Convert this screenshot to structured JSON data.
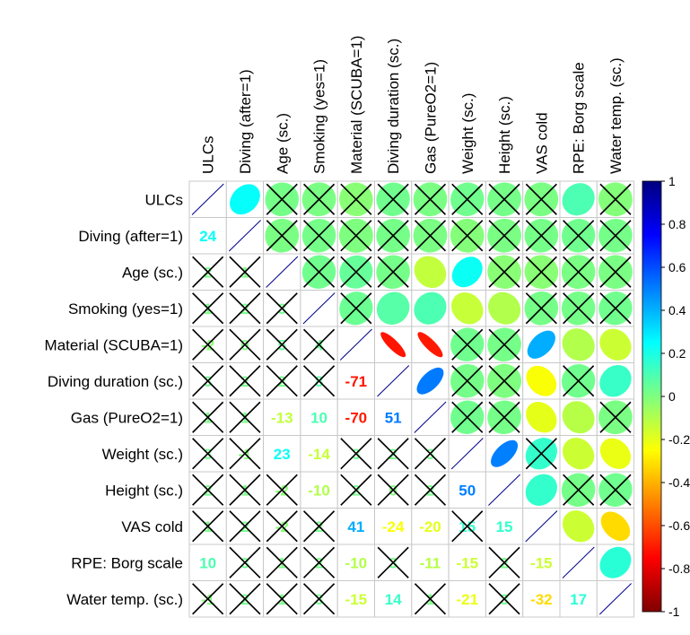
{
  "chart_data": {
    "type": "heatmap",
    "title": "",
    "variables": [
      "ULCs",
      "Diving (after=1)",
      "Age (sc.)",
      "Smoking (yes=1)",
      "Material (SCUBA=1)",
      "Diving duration (sc.)",
      "Gas (PureO2=1)",
      "Weight (sc.)",
      "Height (sc.)",
      "VAS cold",
      "RPE: Borg scale",
      "Water temp. (sc.)"
    ],
    "lower_triangle_labels": [
      [
        null,
        null,
        null,
        null,
        null,
        null,
        null,
        null,
        null,
        null,
        null,
        null
      ],
      [
        24,
        null,
        null,
        null,
        null,
        null,
        null,
        null,
        null,
        null,
        null,
        null
      ],
      [
        null,
        null,
        null,
        null,
        null,
        null,
        null,
        null,
        null,
        null,
        null,
        null
      ],
      [
        null,
        null,
        null,
        null,
        null,
        null,
        null,
        null,
        null,
        null,
        null,
        null
      ],
      [
        null,
        null,
        null,
        null,
        null,
        null,
        null,
        null,
        null,
        null,
        null,
        null
      ],
      [
        null,
        null,
        null,
        null,
        -71,
        null,
        null,
        null,
        null,
        null,
        null,
        null
      ],
      [
        null,
        null,
        -13,
        10,
        -70,
        51,
        null,
        null,
        null,
        null,
        null,
        null
      ],
      [
        null,
        null,
        23,
        -14,
        null,
        null,
        null,
        null,
        null,
        null,
        null,
        null
      ],
      [
        null,
        null,
        null,
        -10,
        null,
        null,
        null,
        50,
        null,
        null,
        null,
        null
      ],
      [
        null,
        null,
        null,
        null,
        41,
        -24,
        -20,
        null,
        15,
        null,
        null,
        null
      ],
      [
        10,
        null,
        null,
        null,
        -10,
        null,
        -11,
        -15,
        null,
        -15,
        null,
        null
      ],
      [
        null,
        null,
        null,
        null,
        -15,
        14,
        null,
        -21,
        null,
        -32,
        17,
        null
      ]
    ],
    "correlations_x100": [
      [
        100,
        24,
        2,
        1,
        -2,
        3,
        1,
        3,
        2,
        1,
        10,
        -1
      ],
      [
        24,
        100,
        1,
        2,
        0,
        2,
        1,
        -1,
        1,
        2,
        3,
        2
      ],
      [
        2,
        1,
        100,
        3,
        5,
        2,
        -13,
        23,
        -2,
        -2,
        1,
        1
      ],
      [
        1,
        2,
        3,
        100,
        4,
        8,
        10,
        -14,
        -10,
        2,
        2,
        3
      ],
      [
        -2,
        0,
        5,
        4,
        100,
        -71,
        -70,
        3,
        2,
        41,
        -10,
        -15
      ],
      [
        3,
        2,
        2,
        8,
        -71,
        100,
        51,
        2,
        0,
        -24,
        3,
        14
      ],
      [
        1,
        1,
        -13,
        10,
        -70,
        51,
        100,
        3,
        2,
        -20,
        -11,
        1
      ],
      [
        3,
        -1,
        23,
        -14,
        3,
        2,
        3,
        100,
        50,
        15,
        -15,
        -21
      ],
      [
        2,
        1,
        -2,
        -10,
        2,
        0,
        2,
        50,
        100,
        15,
        2,
        3
      ],
      [
        1,
        2,
        -2,
        2,
        41,
        -24,
        -20,
        15,
        15,
        100,
        -15,
        -32
      ],
      [
        10,
        3,
        1,
        2,
        -10,
        3,
        -11,
        -15,
        2,
        -15,
        100,
        17
      ],
      [
        -1,
        2,
        1,
        3,
        -15,
        14,
        1,
        -21,
        3,
        -32,
        17,
        100
      ]
    ],
    "insignificant": [
      [
        false,
        false,
        true,
        true,
        true,
        true,
        true,
        true,
        true,
        true,
        false,
        true
      ],
      [
        false,
        false,
        true,
        true,
        true,
        true,
        true,
        true,
        true,
        true,
        true,
        true
      ],
      [
        true,
        true,
        false,
        true,
        true,
        true,
        false,
        false,
        true,
        true,
        true,
        true
      ],
      [
        true,
        true,
        true,
        false,
        true,
        false,
        false,
        false,
        false,
        true,
        true,
        true
      ],
      [
        true,
        true,
        true,
        true,
        false,
        false,
        false,
        true,
        true,
        false,
        false,
        false
      ],
      [
        true,
        true,
        true,
        true,
        false,
        false,
        false,
        true,
        true,
        false,
        true,
        false
      ],
      [
        true,
        true,
        false,
        false,
        false,
        false,
        false,
        true,
        true,
        false,
        false,
        true
      ],
      [
        true,
        true,
        false,
        false,
        true,
        true,
        true,
        false,
        false,
        true,
        false,
        false
      ],
      [
        true,
        true,
        true,
        false,
        true,
        true,
        true,
        false,
        false,
        false,
        true,
        true
      ],
      [
        true,
        true,
        true,
        true,
        false,
        false,
        false,
        true,
        false,
        false,
        false,
        false
      ],
      [
        false,
        true,
        true,
        true,
        false,
        true,
        false,
        false,
        true,
        false,
        false,
        false
      ],
      [
        true,
        true,
        true,
        true,
        false,
        false,
        true,
        false,
        true,
        false,
        false,
        false
      ]
    ],
    "colorbar": {
      "range": [
        -1,
        1
      ],
      "ticks": [
        "1",
        "0.8",
        "0.6",
        "0.4",
        "0.2",
        "0",
        "-0.2",
        "-0.4",
        "-0.6",
        "-0.8",
        "-1"
      ],
      "colors": [
        "#7f0000",
        "#ff0000",
        "#ff7f00",
        "#ffff00",
        "#7fff7f",
        "#00ffff",
        "#007fff",
        "#0000ff",
        "#00007f"
      ]
    },
    "upper_triangle": "ellipse",
    "lower_triangle": "number"
  }
}
